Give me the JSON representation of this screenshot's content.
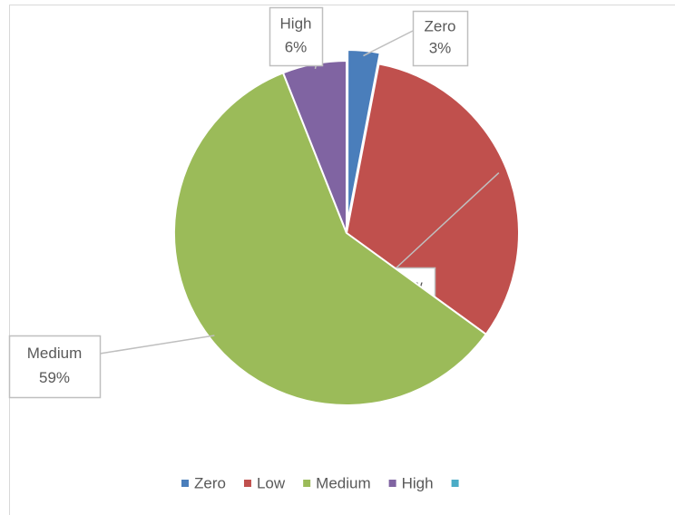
{
  "chart_data": {
    "type": "pie",
    "categories": [
      "Zero",
      "Low",
      "Medium",
      "High",
      null
    ],
    "values": [
      3,
      32,
      59,
      6,
      null
    ],
    "value_labels": [
      "3%",
      "32%",
      "59%",
      "6%",
      null
    ],
    "colors": [
      "#4a7ebb",
      "#c0504d",
      "#9bbb59",
      "#8064a2",
      "#4bacc6"
    ],
    "legend": "bottom"
  }
}
